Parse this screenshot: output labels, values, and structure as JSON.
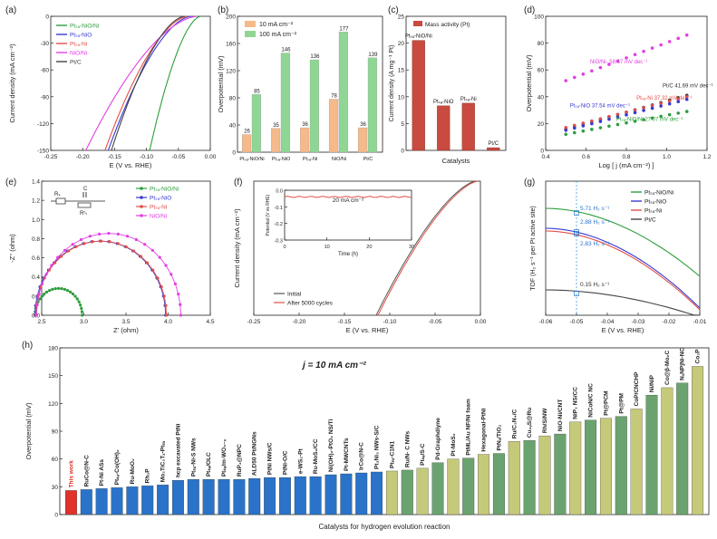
{
  "chart_data": [
    {
      "id": "a",
      "type": "line",
      "label": "(a)",
      "xlabel": "E (V vs. RHE)",
      "ylabel": "Current density (mA cm⁻²)",
      "xlim": [
        -0.25,
        0.0
      ],
      "ylim": [
        -150,
        0
      ],
      "xticks": [
        "-0.25",
        "-0.20",
        "-0.15",
        "-0.10",
        "-0.05",
        "0.00"
      ],
      "yticks": [
        "-150",
        "-120",
        "-90",
        "-60",
        "-30",
        "0"
      ],
      "xtick_vals": [
        -0.25,
        -0.2,
        -0.15,
        -0.1,
        -0.05,
        0.0
      ],
      "ytick_vals": [
        -150,
        -120,
        -90,
        -60,
        -30,
        0
      ],
      "series": [
        {
          "name": "Ptₛₐ-NiO/Ni",
          "color": "#2e9e3e",
          "onset": -0.015,
          "end": -0.095
        },
        {
          "name": "Ptₛₐ-NiO",
          "color": "#3a3ad0",
          "onset": -0.03,
          "end": -0.16
        },
        {
          "name": "Ptₛₐ-Ni",
          "color": "#e0504a",
          "onset": -0.035,
          "end": -0.165
        },
        {
          "name": "NiO/Ni",
          "color": "#e040e0",
          "onset": -0.02,
          "end": -0.195
        },
        {
          "name": "Pt/C",
          "color": "#444444",
          "onset": -0.04,
          "end": -0.155
        }
      ]
    },
    {
      "id": "b",
      "type": "bar",
      "label": "(b)",
      "categories": [
        "Ptₛₐ-NiO/Ni",
        "Ptₛₐ-NiO",
        "Ptₛₐ-Ni",
        "NiO/Ni",
        "Pt/C"
      ],
      "series": [
        {
          "name": "10 mA cm⁻²",
          "color": "#f5b98a",
          "values": [
            26,
            35,
            36,
            78,
            36
          ]
        },
        {
          "name": "100 mA cm⁻²",
          "color": "#8fd694",
          "values": [
            85,
            146,
            136,
            177,
            139
          ]
        }
      ],
      "value_labels": [
        [
          "26",
          "35",
          "36",
          "78",
          "36"
        ],
        [
          "85",
          "146",
          "136",
          "177",
          "139"
        ]
      ],
      "ylabel": "Overpotential (mV)",
      "ylim": [
        0,
        200
      ],
      "yticks": [
        "0",
        "40",
        "80",
        "120",
        "160",
        "200"
      ],
      "ytick_vals": [
        0,
        40,
        80,
        120,
        160,
        200
      ]
    },
    {
      "id": "c",
      "type": "bar",
      "label": "(c)",
      "legend": "Mass activity (Pt)",
      "categories": [
        "Ptₛₐ-NiO/Ni",
        "Ptₛₐ-NiO",
        "Ptₛₐ-Ni",
        "Pt/C"
      ],
      "values": [
        20.5,
        8.3,
        8.8,
        0.5
      ],
      "color": "#c94a3f",
      "xlabel": "Catalysts",
      "ylabel": "Current density (A mg⁻¹ Pt)",
      "ylim": [
        0,
        25
      ],
      "yticks": [
        "0",
        "5",
        "10",
        "15",
        "20",
        "25"
      ],
      "ytick_vals": [
        0,
        5,
        10,
        15,
        20,
        25
      ]
    },
    {
      "id": "d",
      "type": "scatter",
      "label": "(d)",
      "xlabel": "Log [ j (mA cm⁻²) ]",
      "ylabel": "Overpotential (mV)",
      "xlim": [
        0.4,
        1.2
      ],
      "ylim": [
        0,
        100
      ],
      "xticks": [
        "0.4",
        "0.6",
        "0.8",
        "1.0",
        "1.2"
      ],
      "xtick_vals": [
        0.4,
        0.6,
        0.8,
        1.0,
        1.2
      ],
      "yticks": [
        "0",
        "20",
        "40",
        "60",
        "80",
        "100"
      ],
      "ytick_vals": [
        0,
        20,
        40,
        60,
        80,
        100
      ],
      "series": [
        {
          "name": "NiO/Ni- 58.67 mV dec⁻¹",
          "color": "#e040e0",
          "y0": 52,
          "y1": 86
        },
        {
          "name": "Pt/C 41.69 mV dec⁻¹",
          "color": "#333333",
          "y0": 16,
          "y1": 41
        },
        {
          "name": "Ptₛₐ-Ni 37.32 mV dec⁻¹",
          "color": "#e0504a",
          "y0": 17,
          "y1": 40
        },
        {
          "name": "Ptₛₐ-NiO 37.54 mV dec⁻¹",
          "color": "#3a3ad0",
          "y0": 15,
          "y1": 38
        },
        {
          "name": "Ptₛₐ-NiO/Ni 27.07 mV dec⁻¹",
          "color": "#2e9e3e",
          "y0": 12,
          "y1": 29
        }
      ]
    },
    {
      "id": "e",
      "type": "scatter",
      "label": "(e)",
      "xlabel": "Z' (ohm)",
      "ylabel": "-Z'' (ohm)",
      "xlim": [
        2.5,
        4.5
      ],
      "ylim": [
        0,
        1.4
      ],
      "xticks": [
        "2.5",
        "3.0",
        "3.5",
        "4.0",
        "4.5"
      ],
      "xtick_vals": [
        2.5,
        3.0,
        3.5,
        4.0,
        4.5
      ],
      "yticks": [
        "0.0",
        "0.2",
        "0.4",
        "0.6",
        "0.8",
        "1.0",
        "1.2",
        "1.4"
      ],
      "ytick_vals": [
        0,
        0.2,
        0.4,
        0.6,
        0.8,
        1.0,
        1.2,
        1.4
      ],
      "circuit": {
        "r_s": "Rₛ",
        "c": "C",
        "r_ct": "Rᶜₜ"
      },
      "series": [
        {
          "name": "Ptₛₐ-NiO/Ni",
          "color": "#2e9e3e",
          "x0": 2.42,
          "x1": 2.98
        },
        {
          "name": "Ptₛₐ-NiO",
          "color": "#3a3ad0",
          "x0": 2.42,
          "x1": 3.97
        },
        {
          "name": "Ptₛₐ-Ni",
          "color": "#e0504a",
          "x0": 2.43,
          "x1": 3.98
        },
        {
          "name": "NiO/Ni",
          "color": "#e040e0",
          "x0": 2.44,
          "x1": 4.15
        }
      ]
    },
    {
      "id": "f",
      "type": "line",
      "label": "(f)",
      "xlabel": "E (V vs. RHE)",
      "ylabel": "Current density (mA cm⁻²)",
      "xlim": [
        -0.25,
        0.0
      ],
      "ylim": [
        -100,
        0
      ],
      "xticks": [
        "-0.25",
        "-0.20",
        "-0.15",
        "-0.10",
        "-0.05",
        "0.00"
      ],
      "xtick_vals": [
        -0.25,
        -0.2,
        -0.15,
        -0.1,
        -0.05,
        0.0
      ],
      "series": [
        {
          "name": "Initial",
          "color": "#555555"
        },
        {
          "name": "After 5000 cycles",
          "color": "#e0504a"
        }
      ],
      "inset": {
        "xlabel": "Time (h)",
        "ylabel": "Potential (V vs RHE)",
        "annotation": "20 mA cm⁻²",
        "xlim": [
          0,
          30
        ],
        "ylim": [
          -0.3,
          0
        ],
        "xticks": [
          "0",
          "10",
          "20",
          "30"
        ],
        "xtick_vals": [
          0,
          10,
          20,
          30
        ],
        "yticks": [
          "-0.3",
          "-0.2",
          "-0.1",
          "0.0"
        ],
        "ytick_vals": [
          -0.3,
          -0.2,
          -0.1,
          0.0
        ],
        "value": -0.04
      }
    },
    {
      "id": "g",
      "type": "line",
      "label": "(g)",
      "xlabel": "E (V vs. RHE)",
      "ylabel": "TOF (H₂ s⁻¹ per Pt active site)",
      "xlim": [
        -0.06,
        -0.01
      ],
      "xticks": [
        "-0.06",
        "-0.05",
        "-0.04",
        "-0.03",
        "-0.02",
        "-0.01"
      ],
      "xtick_vals": [
        -0.06,
        -0.05,
        -0.04,
        -0.03,
        -0.02,
        -0.01
      ],
      "series": [
        {
          "name": "Ptₛₐ-NiO/Ni",
          "color": "#2e9e3e"
        },
        {
          "name": "Ptₛₐ-NiO",
          "color": "#3a3ad0"
        },
        {
          "name": "Ptₛₐ-Ni",
          "color": "#e0504a"
        },
        {
          "name": "Pt/C",
          "color": "#444444"
        }
      ],
      "annotations": [
        "5.71 H₂ s⁻¹",
        "2.88 H₂ s⁻¹",
        "2.83 H₂ s⁻¹",
        "0.15 H₂ s⁻¹"
      ]
    },
    {
      "id": "h",
      "type": "bar",
      "label": "(h)",
      "title": "j = 10 mA cm⁻²",
      "xlabel": "Catalysts for hydrogen evolution reaction",
      "ylabel": "Overpotential (mV)",
      "ylim": [
        0,
        180
      ],
      "yticks": [
        "0",
        "30",
        "60",
        "90",
        "120",
        "150",
        "180"
      ],
      "ytick_vals": [
        0,
        30,
        60,
        90,
        120,
        150,
        180
      ],
      "categories": [
        "This work",
        "RuCo@N-C",
        "Pt-Ni ASs",
        "Ptₛₐ-Co(OH)₂",
        "Ru-MoO₂",
        "Rh₂P",
        "Mo₂TiC₂Tₓ-Ptₛₐ",
        "hcp excavated PtNi",
        "Ptₛₐ-Ni-S NWs",
        "Ptₛₐ/OLC",
        "Ptₛₐ/m-WO₃₋ₓ",
        "RuP₂@NPC",
        "ALD50 Pt/NGNs",
        "PtNi NWs/C",
        "PtNi-O/C",
        "e-WS₂-Pt",
        "Ru-MoS₂/CC",
        "Ni(OH)₂-PtO₂ NS/Ti",
        "Pt-MWCNTs",
        "IrCo@N-C",
        "Pt₃Ni₃ NWs-S/C",
        "Ptₛₐ-C1N1",
        "Ru/N- C NWs",
        "Ptₛₐ/S-C",
        "Pd-Graphdiyne",
        "Pt-MoS₂",
        "PtML/Au NF/Ni foam",
        "Hexagonal-PtNi",
        "PtNₓ/TiO₂",
        "Ru/C₃N₄/C",
        "Cu₂ₔS@Ru",
        "Rh/SiNW",
        "NiO-Ni/CNT",
        "NiP₂ NS/CC",
        "NiCoN/C NC",
        "Pt@PCM",
        "Pt@PM",
        "CoP/CNCHP",
        "Ni/NiP",
        "Co@β-Mo₂C",
        "NₓNP|Ni-NC",
        "Co₂P"
      ],
      "values": [
        26,
        27,
        28,
        29,
        30,
        31,
        32,
        37,
        38,
        38,
        38,
        38,
        39,
        40,
        40,
        41,
        41,
        43,
        44,
        45,
        46,
        47,
        48,
        50,
        56,
        60,
        61,
        65,
        66,
        79,
        80,
        85,
        87,
        100,
        102,
        104,
        106,
        114,
        129,
        137,
        142,
        160
      ],
      "highlight_color": "#2a73c9",
      "bar_color": "#c5c97a",
      "this_work_color": "#e0312a"
    }
  ]
}
